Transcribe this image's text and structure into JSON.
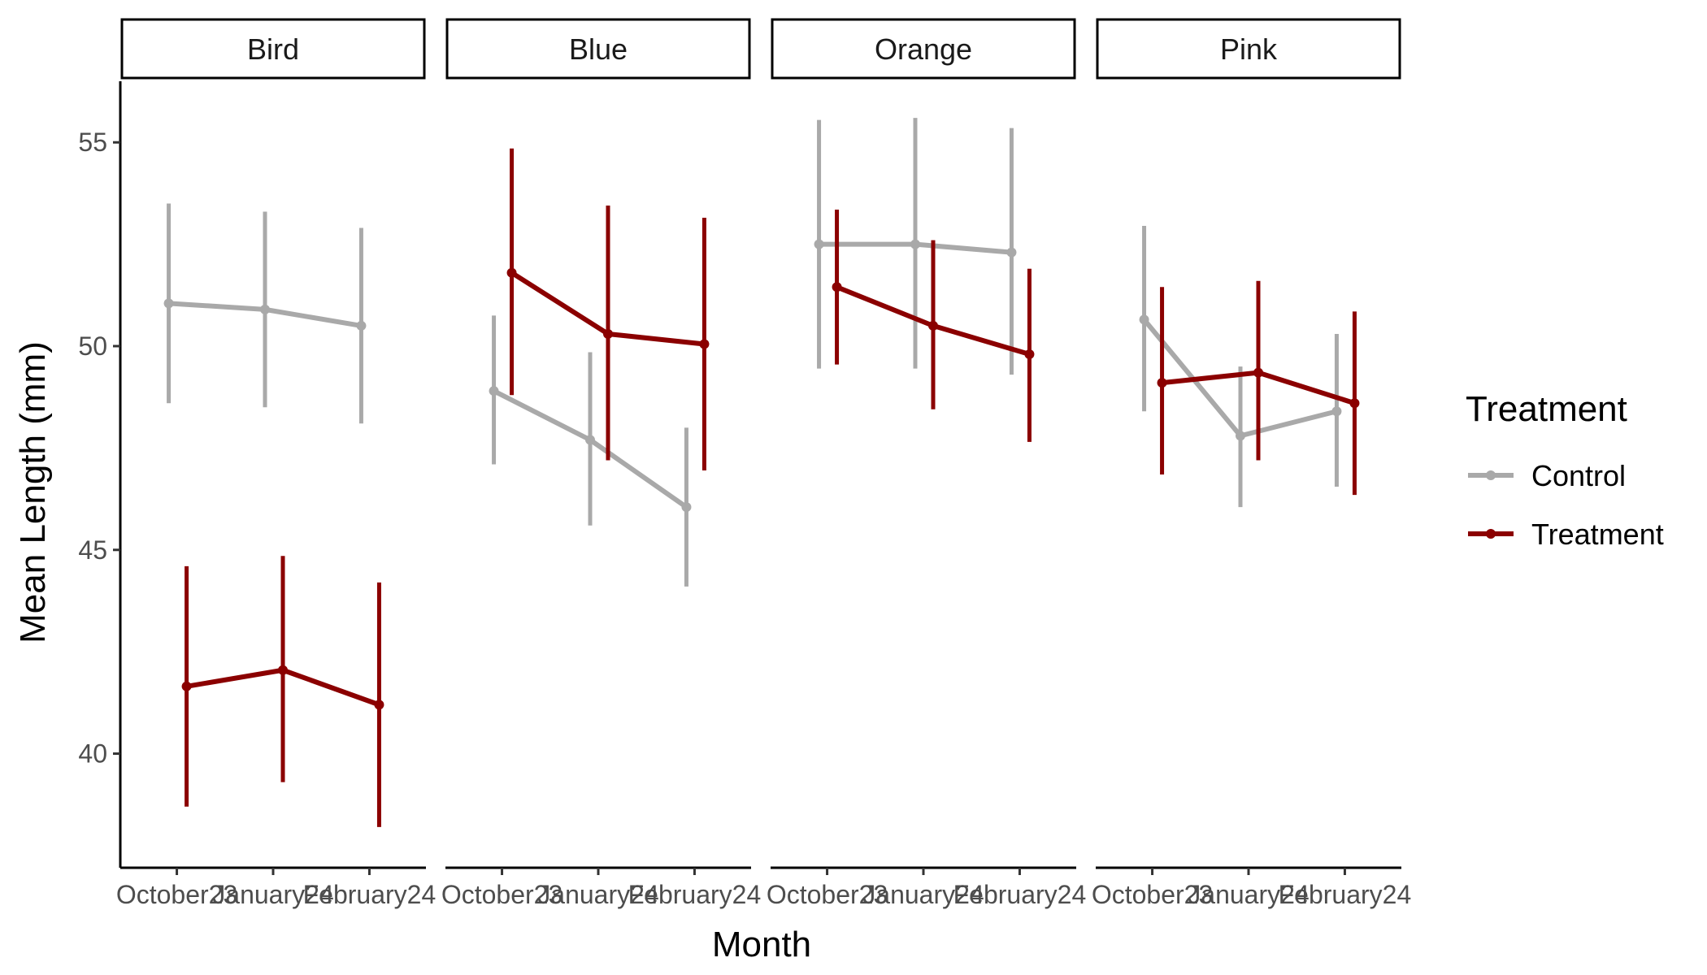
{
  "chart_data": {
    "type": "line",
    "xlabel": "Month",
    "ylabel": "Mean Length (mm)",
    "categories": [
      "October23",
      "January24",
      "February24"
    ],
    "y_ticks": [
      40,
      45,
      50,
      55
    ],
    "ylim": [
      37.2,
      56.5
    ],
    "grid": false,
    "legend": {
      "title": "Treatment",
      "placement": "right",
      "items": [
        "Control",
        "Treatment"
      ]
    },
    "colors": {
      "Control": "#a9a9a9",
      "Treatment": "#8b0000"
    },
    "panels": [
      {
        "name": "Bird",
        "series": [
          {
            "name": "Control",
            "values": [
              51.05,
              50.9,
              50.5
            ],
            "lower": [
              48.6,
              48.5,
              48.1
            ],
            "upper": [
              53.5,
              53.3,
              52.9
            ]
          },
          {
            "name": "Treatment",
            "values": [
              41.65,
              42.05,
              41.2
            ],
            "lower": [
              38.7,
              39.3,
              38.2
            ],
            "upper": [
              44.6,
              44.85,
              44.2
            ]
          }
        ]
      },
      {
        "name": "Blue",
        "series": [
          {
            "name": "Control",
            "values": [
              48.9,
              47.7,
              46.05
            ],
            "lower": [
              47.1,
              45.6,
              44.1
            ],
            "upper": [
              50.75,
              49.85,
              48.0
            ]
          },
          {
            "name": "Treatment",
            "values": [
              51.8,
              50.3,
              50.05
            ],
            "lower": [
              48.8,
              47.2,
              46.95
            ],
            "upper": [
              54.85,
              53.45,
              53.15
            ]
          }
        ]
      },
      {
        "name": "Orange",
        "series": [
          {
            "name": "Control",
            "values": [
              52.5,
              52.5,
              52.3
            ],
            "lower": [
              49.45,
              49.45,
              49.3
            ],
            "upper": [
              55.55,
              55.6,
              55.35
            ]
          },
          {
            "name": "Treatment",
            "values": [
              51.45,
              50.5,
              49.8
            ],
            "lower": [
              49.55,
              48.45,
              47.65
            ],
            "upper": [
              53.35,
              52.6,
              51.9
            ]
          }
        ]
      },
      {
        "name": "Pink",
        "series": [
          {
            "name": "Control",
            "values": [
              50.65,
              47.8,
              48.4
            ],
            "lower": [
              48.4,
              46.05,
              46.55
            ],
            "upper": [
              52.95,
              49.5,
              50.3
            ]
          },
          {
            "name": "Treatment",
            "values": [
              49.1,
              49.35,
              48.6
            ],
            "lower": [
              46.85,
              47.2,
              46.35
            ],
            "upper": [
              51.45,
              51.6,
              50.85
            ]
          }
        ]
      }
    ]
  }
}
